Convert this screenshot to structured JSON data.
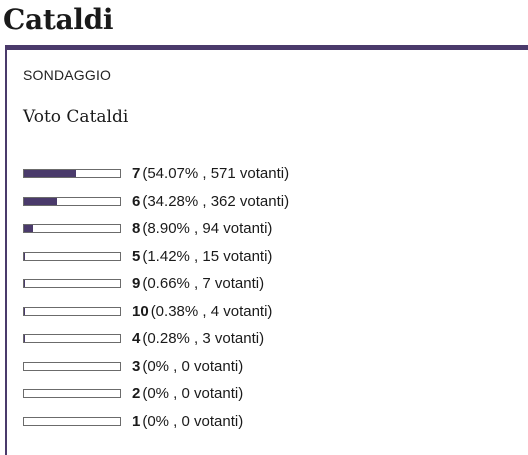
{
  "page": {
    "title": "Cataldi"
  },
  "poll": {
    "kicker": "SONDAGGIO",
    "question": "Voto Cataldi",
    "accent_color": "#4a3a6b",
    "options": [
      {
        "label": "7",
        "percent": 54.07,
        "detail": "(54.07% , 571 votanti)"
      },
      {
        "label": "6",
        "percent": 34.28,
        "detail": "(34.28% , 362 votanti)"
      },
      {
        "label": "8",
        "percent": 8.9,
        "detail": "(8.90% , 94 votanti)"
      },
      {
        "label": "5",
        "percent": 1.42,
        "detail": "(1.42% , 15 votanti)"
      },
      {
        "label": "9",
        "percent": 0.66,
        "detail": "(0.66% , 7 votanti)"
      },
      {
        "label": "10",
        "percent": 0.38,
        "detail": "(0.38% , 4 votanti)"
      },
      {
        "label": "4",
        "percent": 0.28,
        "detail": "(0.28% , 3 votanti)"
      },
      {
        "label": "3",
        "percent": 0,
        "detail": "(0% , 0 votanti)"
      },
      {
        "label": "2",
        "percent": 0,
        "detail": "(0% , 0 votanti)"
      },
      {
        "label": "1",
        "percent": 0,
        "detail": "(0% , 0 votanti)"
      }
    ]
  }
}
